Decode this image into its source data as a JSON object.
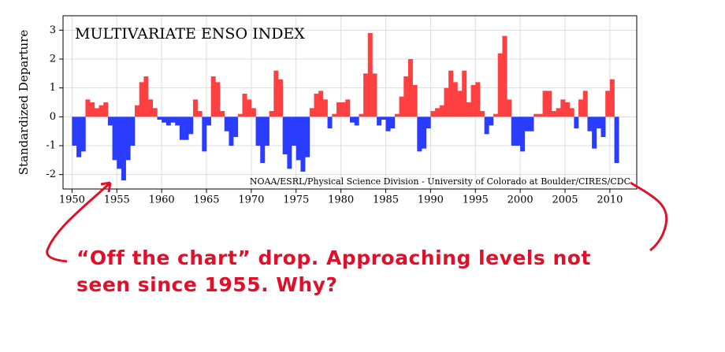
{
  "chart_data": {
    "type": "bar",
    "title": "MULTIVARIATE ENSO INDEX",
    "y_label": "Standardized Departure",
    "credit": "NOAA/ESRL/Physical Science Division - University of Colorado at Boulder/CIRES/CDC",
    "colors": {
      "positive": "#ff4040",
      "negative": "#2a3cff"
    },
    "grid": true,
    "xlim": [
      1949,
      2013
    ],
    "xticks": [
      1950,
      1955,
      1960,
      1965,
      1970,
      1975,
      1980,
      1985,
      1990,
      1995,
      2000,
      2005,
      2010
    ],
    "ylim": [
      -2.5,
      3.5
    ],
    "yticks": [
      -2,
      -1,
      0,
      1,
      2,
      3
    ],
    "x": [
      1950.0,
      1950.5,
      1951.0,
      1951.5,
      1952.0,
      1952.5,
      1953.0,
      1953.5,
      1954.0,
      1954.5,
      1955.0,
      1955.5,
      1956.0,
      1956.5,
      1957.0,
      1957.5,
      1958.0,
      1958.5,
      1959.0,
      1959.5,
      1960.0,
      1960.5,
      1961.0,
      1961.5,
      1962.0,
      1962.5,
      1963.0,
      1963.5,
      1964.0,
      1964.5,
      1965.0,
      1965.5,
      1966.0,
      1966.5,
      1967.0,
      1967.5,
      1968.0,
      1968.5,
      1969.0,
      1969.5,
      1970.0,
      1970.5,
      1971.0,
      1971.5,
      1972.0,
      1972.5,
      1973.0,
      1973.5,
      1974.0,
      1974.5,
      1975.0,
      1975.5,
      1976.0,
      1976.5,
      1977.0,
      1977.5,
      1978.0,
      1978.5,
      1979.0,
      1979.5,
      1980.0,
      1980.5,
      1981.0,
      1981.5,
      1982.0,
      1982.5,
      1983.0,
      1983.5,
      1984.0,
      1984.5,
      1985.0,
      1985.5,
      1986.0,
      1986.5,
      1987.0,
      1987.5,
      1988.0,
      1988.5,
      1989.0,
      1989.5,
      1990.0,
      1990.5,
      1991.0,
      1991.5,
      1992.0,
      1992.5,
      1993.0,
      1993.5,
      1994.0,
      1994.5,
      1995.0,
      1995.5,
      1996.0,
      1996.5,
      1997.0,
      1997.5,
      1998.0,
      1998.5,
      1999.0,
      1999.5,
      2000.0,
      2000.5,
      2001.0,
      2001.5,
      2002.0,
      2002.5,
      2003.0,
      2003.5,
      2004.0,
      2004.5,
      2005.0,
      2005.5,
      2006.0,
      2006.5,
      2007.0,
      2007.5,
      2008.0,
      2008.5,
      2009.0,
      2009.5,
      2010.0,
      2010.5
    ],
    "values": [
      -1.0,
      -1.4,
      -1.2,
      0.6,
      0.5,
      0.3,
      0.4,
      0.5,
      -0.3,
      -1.5,
      -1.8,
      -2.2,
      -1.5,
      -1.0,
      0.4,
      1.2,
      1.4,
      0.6,
      0.3,
      -0.1,
      -0.2,
      -0.3,
      -0.2,
      -0.3,
      -0.8,
      -0.8,
      -0.6,
      0.6,
      0.2,
      -1.2,
      -0.3,
      1.4,
      1.2,
      0.2,
      -0.5,
      -1.0,
      -0.7,
      0.1,
      0.8,
      0.6,
      0.3,
      -1.0,
      -1.6,
      -1.0,
      0.2,
      1.6,
      1.3,
      -1.3,
      -1.8,
      -1.0,
      -1.5,
      -1.9,
      -1.4,
      0.3,
      0.8,
      0.9,
      0.6,
      -0.4,
      0.1,
      0.5,
      0.5,
      0.6,
      -0.2,
      -0.3,
      0.1,
      1.5,
      2.9,
      1.5,
      -0.3,
      -0.1,
      -0.5,
      -0.4,
      0.1,
      0.7,
      1.4,
      2.0,
      1.1,
      -1.2,
      -1.1,
      -0.4,
      0.2,
      0.3,
      0.4,
      1.0,
      1.6,
      1.2,
      0.9,
      1.6,
      0.5,
      1.1,
      1.2,
      0.2,
      -0.6,
      -0.3,
      0.1,
      2.2,
      2.8,
      0.6,
      -1.0,
      -1.0,
      -1.2,
      -0.5,
      -0.5,
      0.1,
      0.1,
      0.9,
      0.9,
      0.2,
      0.3,
      0.6,
      0.5,
      0.3,
      -0.4,
      0.6,
      0.9,
      -0.5,
      -1.1,
      -0.4,
      -0.7,
      0.9,
      1.3,
      -1.6
    ]
  },
  "annotation": [
    "“Off the chart” drop. Approaching levels not",
    "seen since 1955.  Why?"
  ]
}
